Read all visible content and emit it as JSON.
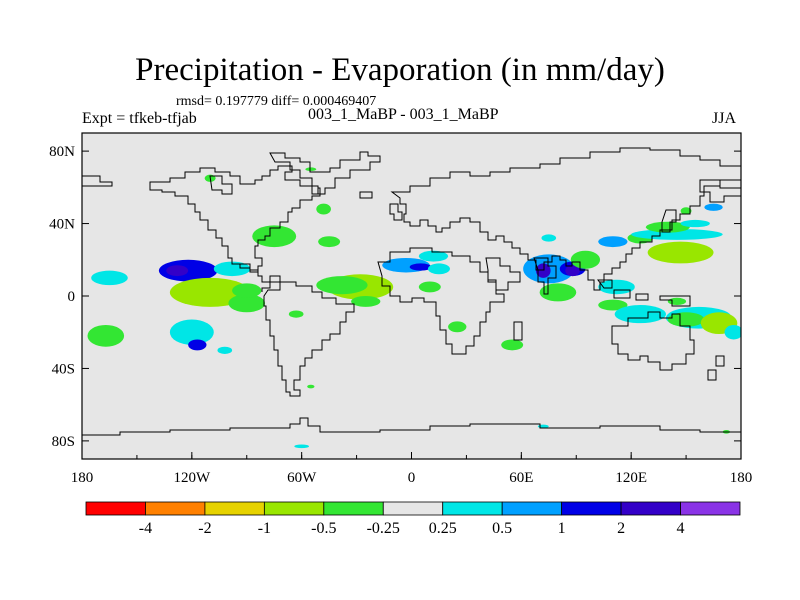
{
  "header": {
    "title": "Precipitation - Evaporation (in mm/day)",
    "stats": "rmsd= 0.197779 diff= 0.000469407",
    "experiment": "Expt = tfkeb-tfjab",
    "run": "003_1_MaBP - 003_1_MaBP",
    "season": "JJA"
  },
  "chart_data": {
    "type": "heatmap",
    "projection": "cylindrical equidistant",
    "xlim": [
      -180,
      180
    ],
    "ylim": [
      -90,
      90
    ],
    "background_color": "#e6e6e6",
    "x_ticks": [
      {
        "value": -180,
        "label": "180"
      },
      {
        "value": -120,
        "label": "120W"
      },
      {
        "value": -60,
        "label": "60W"
      },
      {
        "value": 0,
        "label": "0"
      },
      {
        "value": 60,
        "label": "60E"
      },
      {
        "value": 120,
        "label": "120E"
      },
      {
        "value": 180,
        "label": "180"
      }
    ],
    "y_ticks": [
      {
        "value": 80,
        "label": "80N"
      },
      {
        "value": 40,
        "label": "40N"
      },
      {
        "value": 0,
        "label": "0"
      },
      {
        "value": -40,
        "label": "40S"
      },
      {
        "value": -80,
        "label": "80S"
      }
    ],
    "colorbar": {
      "colors": [
        "#ff0000",
        "#ff8000",
        "#e6d200",
        "#99e600",
        "#33e633",
        "#e6e6e6",
        "#00e6e6",
        "#00a0ff",
        "#0000e6",
        "#3300c8",
        "#8a33e6"
      ],
      "labels": [
        "-4",
        "-2",
        "-1",
        "-0.5",
        "-0.25",
        "0.25",
        "0.5",
        "1",
        "2",
        "4"
      ]
    },
    "anomalies": [
      {
        "lon": -122,
        "lat": 14,
        "rlon": 16,
        "rlat": 6,
        "value": 1.2
      },
      {
        "lon": -128,
        "lat": 14,
        "rlon": 6,
        "rlat": 3,
        "value": 2.5
      },
      {
        "lon": -98,
        "lat": 15,
        "rlon": 10,
        "rlat": 4,
        "value": 0.3
      },
      {
        "lon": -165,
        "lat": 10,
        "rlon": 10,
        "rlat": 4,
        "value": 0.3
      },
      {
        "lon": -110,
        "lat": 2,
        "rlon": 22,
        "rlat": 8,
        "value": -0.8
      },
      {
        "lon": -90,
        "lat": -4,
        "rlon": 10,
        "rlat": 5,
        "value": -0.4
      },
      {
        "lon": -90,
        "lat": 3,
        "rlon": 8,
        "rlat": 4,
        "value": -0.3
      },
      {
        "lon": -167,
        "lat": -22,
        "rlon": 10,
        "rlat": 6,
        "value": -0.3
      },
      {
        "lon": -63,
        "lat": -10,
        "rlon": 4,
        "rlat": 2,
        "value": -0.3
      },
      {
        "lon": -75,
        "lat": 33,
        "rlon": 12,
        "rlat": 6,
        "value": -0.5
      },
      {
        "lon": -45,
        "lat": 30,
        "rlon": 6,
        "rlat": 3,
        "value": -0.3
      },
      {
        "lon": -48,
        "lat": 48,
        "rlon": 4,
        "rlat": 3,
        "value": -0.3
      },
      {
        "lon": -120,
        "lat": -20,
        "rlon": 12,
        "rlat": 7,
        "value": 0.4
      },
      {
        "lon": -117,
        "lat": -27,
        "rlon": 5,
        "rlat": 3,
        "value": 1.5
      },
      {
        "lon": -102,
        "lat": -30,
        "rlon": 4,
        "rlat": 2,
        "value": 0.3
      },
      {
        "lon": -28,
        "lat": 5,
        "rlon": 18,
        "rlat": 7,
        "value": -0.8
      },
      {
        "lon": -38,
        "lat": 6,
        "rlon": 14,
        "rlat": 5,
        "value": -0.4
      },
      {
        "lon": -25,
        "lat": -3,
        "rlon": 8,
        "rlat": 3,
        "value": -0.5
      },
      {
        "lon": -3,
        "lat": 17,
        "rlon": 13,
        "rlat": 4,
        "value": 0.7
      },
      {
        "lon": 5,
        "lat": 16,
        "rlon": 6,
        "rlat": 2,
        "value": 1.5
      },
      {
        "lon": 15,
        "lat": 15,
        "rlon": 6,
        "rlat": 3,
        "value": 0.3
      },
      {
        "lon": 10,
        "lat": 5,
        "rlon": 6,
        "rlat": 3,
        "value": -0.3
      },
      {
        "lon": 12,
        "lat": 22,
        "rlon": 8,
        "rlat": 3,
        "value": 0.3
      },
      {
        "lon": 25,
        "lat": -17,
        "rlon": 5,
        "rlat": 3,
        "value": -0.3
      },
      {
        "lon": 55,
        "lat": -27,
        "rlon": 6,
        "rlat": 3,
        "value": -0.3
      },
      {
        "lon": 75,
        "lat": 15,
        "rlon": 14,
        "rlat": 8,
        "value": 0.5
      },
      {
        "lon": 72,
        "lat": 14,
        "rlon": 4,
        "rlat": 4,
        "value": 2.0
      },
      {
        "lon": 88,
        "lat": 15,
        "rlon": 7,
        "rlat": 4,
        "value": 1.5
      },
      {
        "lon": 88,
        "lat": 14,
        "rlon": 4,
        "rlat": 3,
        "value": 2.5
      },
      {
        "lon": 80,
        "lat": 2,
        "rlon": 10,
        "rlat": 5,
        "value": -0.4
      },
      {
        "lon": 95,
        "lat": 20,
        "rlon": 8,
        "rlat": 5,
        "value": -0.3
      },
      {
        "lon": 75,
        "lat": 32,
        "rlon": 4,
        "rlat": 2,
        "value": 0.4
      },
      {
        "lon": 110,
        "lat": 30,
        "rlon": 8,
        "rlat": 3,
        "value": 0.6
      },
      {
        "lon": 125,
        "lat": 32,
        "rlon": 7,
        "rlat": 3,
        "value": -0.3
      },
      {
        "lon": 147,
        "lat": 24,
        "rlon": 18,
        "rlat": 6,
        "value": -0.8
      },
      {
        "lon": 145,
        "lat": 34,
        "rlon": 25,
        "rlat": 3,
        "value": 0.3
      },
      {
        "lon": 140,
        "lat": 38,
        "rlon": 12,
        "rlat": 3,
        "value": -0.3
      },
      {
        "lon": 155,
        "lat": 40,
        "rlon": 8,
        "rlat": 2,
        "value": 0.3
      },
      {
        "lon": 150,
        "lat": 47,
        "rlon": 3,
        "rlat": 2,
        "value": -0.4
      },
      {
        "lon": 165,
        "lat": 49,
        "rlon": 5,
        "rlat": 2,
        "value": 0.5
      },
      {
        "lon": 112,
        "lat": 5,
        "rlon": 10,
        "rlat": 4,
        "value": 0.3
      },
      {
        "lon": 110,
        "lat": -5,
        "rlon": 8,
        "rlat": 3,
        "value": -0.3
      },
      {
        "lon": 125,
        "lat": -10,
        "rlon": 14,
        "rlat": 5,
        "value": 0.3
      },
      {
        "lon": 157,
        "lat": -12,
        "rlon": 18,
        "rlat": 6,
        "value": 0.3
      },
      {
        "lon": 150,
        "lat": -13,
        "rlon": 10,
        "rlat": 4,
        "value": -0.3
      },
      {
        "lon": 168,
        "lat": -15,
        "rlon": 10,
        "rlat": 6,
        "value": -0.8
      },
      {
        "lon": 176,
        "lat": -20,
        "rlon": 5,
        "rlat": 4,
        "value": 0.3
      },
      {
        "lon": 145,
        "lat": -3,
        "rlon": 5,
        "rlat": 2,
        "value": -0.3
      },
      {
        "lon": -55,
        "lat": -50,
        "rlon": 2,
        "rlat": 1,
        "value": -0.3
      },
      {
        "lon": -55,
        "lat": 70,
        "rlon": 3,
        "rlat": 1,
        "value": -0.3
      },
      {
        "lon": -110,
        "lat": 65,
        "rlon": 3,
        "rlat": 2,
        "value": -0.3
      },
      {
        "lon": -60,
        "lat": -83,
        "rlon": 4,
        "rlat": 1,
        "value": 0.3
      },
      {
        "lon": 72,
        "lat": -72,
        "rlon": 3,
        "rlat": 1,
        "value": 0.3
      },
      {
        "lon": 172,
        "lat": -75,
        "rlon": 2,
        "rlat": 1,
        "value": -0.5
      }
    ]
  }
}
